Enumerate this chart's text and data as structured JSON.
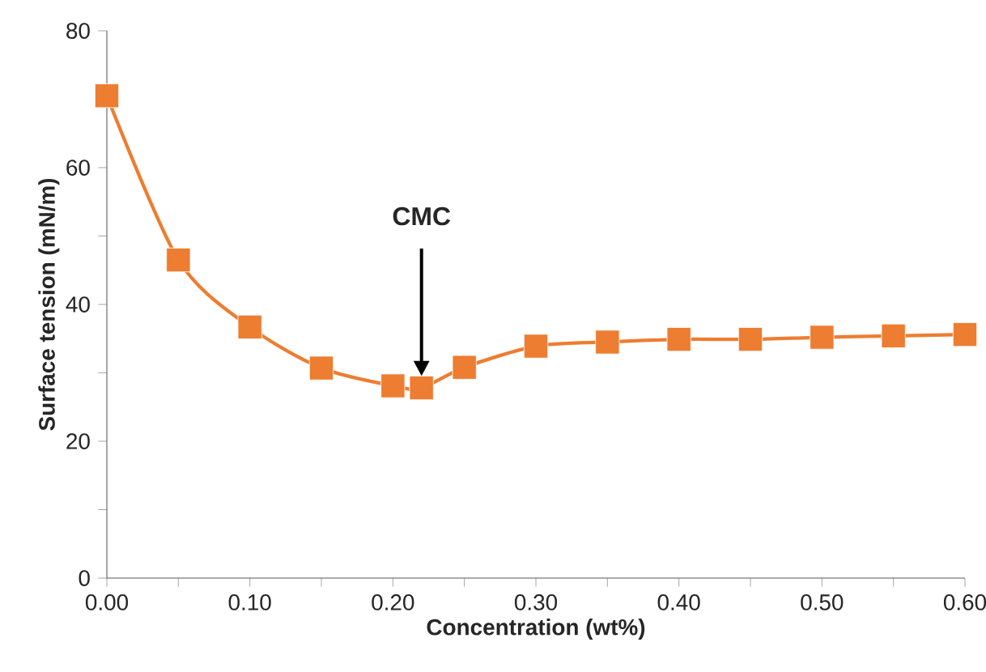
{
  "chart_data": {
    "type": "line",
    "xlabel": "Concentration (wt%)",
    "ylabel": "Surface tension (mN/m)",
    "x": [
      0.0,
      0.05,
      0.1,
      0.15,
      0.2,
      0.22,
      0.25,
      0.3,
      0.35,
      0.4,
      0.45,
      0.5,
      0.55,
      0.6
    ],
    "series": [
      {
        "color": "#ed7d31",
        "values": [
          70.5,
          46.5,
          36.7,
          30.7,
          28.1,
          27.8,
          30.8,
          33.9,
          34.5,
          34.9,
          34.9,
          35.2,
          35.4,
          35.6
        ]
      }
    ],
    "xlim": [
      0,
      0.6
    ],
    "ylim": [
      0,
      80
    ],
    "xticks": [
      {
        "value": 0,
        "label": "0.00"
      },
      {
        "value": 0.05,
        "label": null
      },
      {
        "value": 0.1,
        "label": "0.10"
      },
      {
        "value": 0.15,
        "label": null
      },
      {
        "value": 0.2,
        "label": "0.20"
      },
      {
        "value": 0.25,
        "label": null
      },
      {
        "value": 0.3,
        "label": "0.30"
      },
      {
        "value": 0.35,
        "label": null
      },
      {
        "value": 0.4,
        "label": "0.40"
      },
      {
        "value": 0.45,
        "label": null
      },
      {
        "value": 0.5,
        "label": "0.50"
      },
      {
        "value": 0.55,
        "label": null
      },
      {
        "value": 0.6,
        "label": "0.60"
      }
    ],
    "yticks": [
      0,
      {
        "value": 10,
        "label": null
      },
      20,
      {
        "value": 30,
        "label": null
      },
      40,
      {
        "value": 50,
        "label": null
      },
      60,
      {
        "value": 70,
        "label": null
      },
      80
    ],
    "annotations": [
      "CMC"
    ],
    "marker": "square",
    "grid": false
  }
}
